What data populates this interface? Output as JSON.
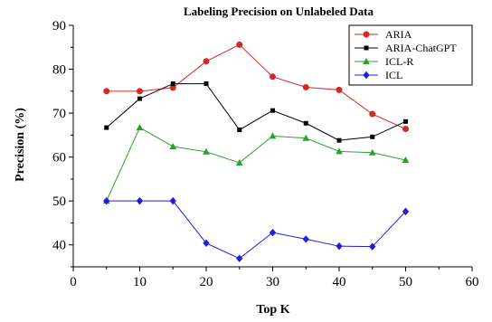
{
  "chart_data": {
    "type": "line",
    "title": "Labeling Precision on Unlabeled Data",
    "xlabel": "Top K",
    "ylabel": "Precision (%)",
    "xlim": [
      0,
      60
    ],
    "ylim": [
      35,
      90
    ],
    "xticks": [
      0,
      10,
      20,
      30,
      40,
      50,
      60
    ],
    "yticks": [
      40,
      50,
      60,
      70,
      80,
      90
    ],
    "grid": false,
    "legend_position": "top-right",
    "x": [
      5,
      10,
      15,
      20,
      25,
      30,
      35,
      40,
      45,
      50
    ],
    "series": [
      {
        "name": "ARIA",
        "color": "#d62728",
        "marker": "circle",
        "values": [
          75.0,
          75.0,
          75.8,
          81.8,
          85.6,
          78.3,
          75.9,
          75.3,
          69.8,
          66.4
        ]
      },
      {
        "name": "ARIA-ChatGPT",
        "color": "#000000",
        "marker": "square",
        "values": [
          66.7,
          73.3,
          76.7,
          76.7,
          66.2,
          70.6,
          67.7,
          63.8,
          64.6,
          68.1
        ]
      },
      {
        "name": "ICL-R",
        "color": "#2ca02c",
        "marker": "triangle",
        "values": [
          50.0,
          66.7,
          62.4,
          61.2,
          58.7,
          64.8,
          64.3,
          61.3,
          61.0,
          59.3
        ]
      },
      {
        "name": "ICL",
        "color": "#1f1fdc",
        "marker": "diamond",
        "values": [
          50.0,
          50.0,
          50.0,
          40.4,
          36.9,
          42.8,
          41.3,
          39.7,
          39.6,
          47.6
        ]
      }
    ]
  }
}
